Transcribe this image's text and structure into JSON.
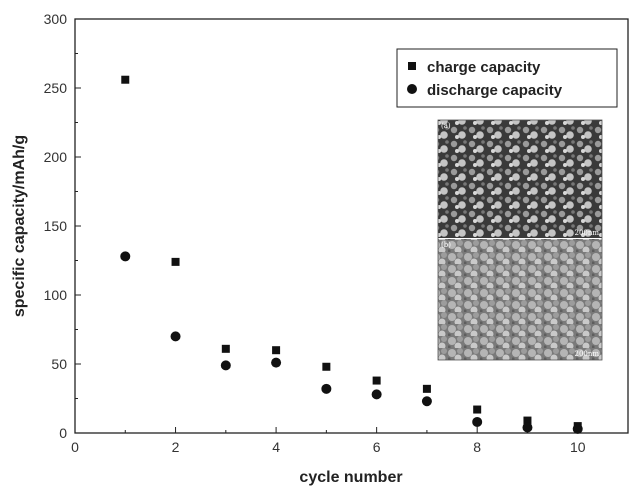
{
  "chart_data": {
    "type": "scatter",
    "title": "",
    "xlabel": "cycle number",
    "ylabel": "specific capacity/mAh/g",
    "xlim": [
      0,
      11
    ],
    "ylim": [
      0,
      300
    ],
    "xticks": [
      0,
      2,
      4,
      6,
      8,
      10
    ],
    "yticks": [
      0,
      50,
      100,
      150,
      200,
      250,
      300
    ],
    "grid": false,
    "legend_position": "top-right",
    "series": [
      {
        "name": "charge capacity",
        "marker": "square",
        "color": "#111111",
        "x": [
          1,
          2,
          3,
          4,
          5,
          6,
          7,
          8,
          9,
          10
        ],
        "y": [
          256,
          124,
          61,
          60,
          48,
          38,
          32,
          17,
          9,
          5
        ]
      },
      {
        "name": "discharge capacity",
        "marker": "circle",
        "color": "#111111",
        "x": [
          1,
          2,
          3,
          4,
          5,
          6,
          7,
          8,
          9,
          10
        ],
        "y": [
          128,
          70,
          49,
          51,
          32,
          28,
          23,
          8,
          4,
          3
        ]
      }
    ]
  },
  "inset": {
    "panel_a_label": "(a)",
    "panel_a_scale": "200nm",
    "panel_b_label": "(b)",
    "panel_b_scale": "200nm"
  }
}
